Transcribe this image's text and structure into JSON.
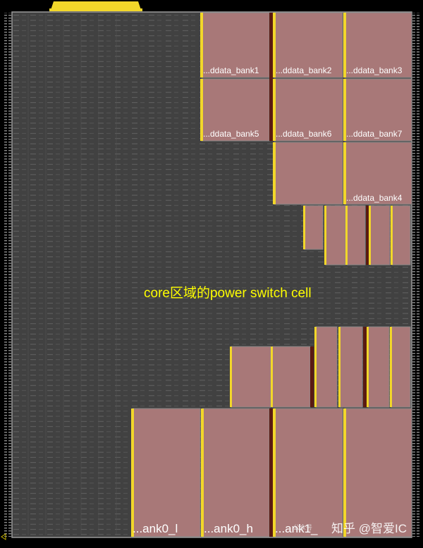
{
  "canvas": {
    "background": "#000000",
    "core_fill": "#414141",
    "core_outline": "#9a9a9a",
    "macro_fill": "#a87878",
    "macro_edge": "#c9a6a6",
    "power_strap": "#f2d72a",
    "dark_strap": "#5a1a12",
    "pin_color": "#c8b400"
  },
  "annotation": {
    "text": "core区域的power switch cell",
    "color": "#ffff00"
  },
  "macros": {
    "bank1": "...ddata_bank1",
    "bank2": "...ddata_bank2",
    "bank3": "...ddata_bank3",
    "bank5": "...ddata_bank5",
    "bank6": "...ddata_bank6",
    "bank7": "...ddata_bank7",
    "bank4": "...ddata_bank4",
    "ank0_l": "...ank0_l",
    "ank0_h": "...ank0_h",
    "ank1": "...ank1_"
  },
  "watermark": {
    "text": "知乎 @智爱IC",
    "sub": "公众号"
  }
}
